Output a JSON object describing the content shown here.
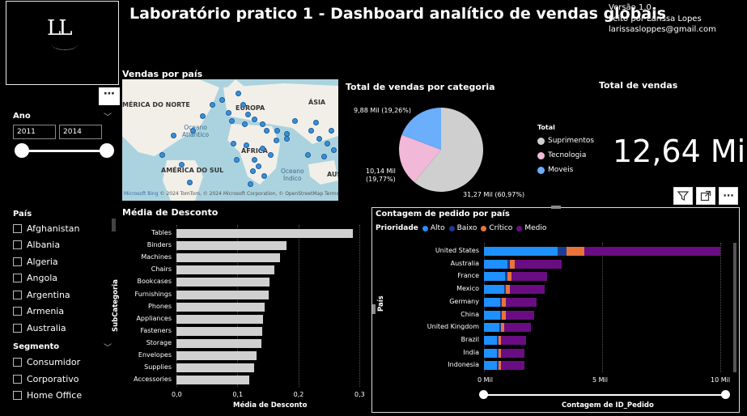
{
  "header": {
    "logo": "LL",
    "title": "Laboratório pratico 1 - Dashboard analítico de vendas globais",
    "version": "Versão 1.0",
    "author": "Feito por Larissa Lopes",
    "email": "larissasloppes@gmail.com"
  },
  "slicers": {
    "ano": {
      "label": "Ano",
      "from": "2011",
      "to": "2014"
    },
    "pais": {
      "label": "País",
      "items": [
        "Afghanistan",
        "Albania",
        "Algeria",
        "Angola",
        "Argentina",
        "Armenia",
        "Australia"
      ]
    },
    "segmento": {
      "label": "Segmento",
      "items": [
        "Consumidor",
        "Corporativo",
        "Home Office"
      ]
    }
  },
  "map": {
    "title": "Vendas por país",
    "labels": {
      "north_america": "MÉRICA DO NORTE",
      "europe": "EUROPA",
      "asia": "ÁSIA",
      "atlantic": "Oceano\nAtlântico",
      "africa": "ÁFRICA",
      "south_america": "AMÉRICA DO SUL",
      "indian": "Oceano\nÍndico",
      "aus": "AUS"
    },
    "credit_brand": "Microsoft Bing",
    "credit": "© 2024 TomTom, © 2024 Microsoft Corporation, © OpenStreetMap  Terms"
  },
  "pie": {
    "title": "Total de vendas por categoria",
    "legend_title": "Total",
    "slices": [
      {
        "name": "Suprimentos",
        "value": 31.27,
        "label": "31,27 Mil (60,97%)",
        "color": "#cfcfcf"
      },
      {
        "name": "Tecnologia",
        "value": 10.14,
        "label_line1": "10,14 Mil",
        "label_line2": "(19,77%)",
        "color": "#f2b8d8"
      },
      {
        "name": "Moveis",
        "value": 9.88,
        "label": "9,88 Mil (19,26%)",
        "color": "#6aaefc"
      }
    ]
  },
  "card": {
    "title": "Total de vendas",
    "value": "12,64 Mi"
  },
  "bar_chart": {
    "title": "Média de Desconto",
    "ylabel": "SubCategoria",
    "xlabel": "Média de Desconto",
    "ticks": [
      "0,0",
      "0,1",
      "0,2",
      "0,3"
    ],
    "xlim": [
      0,
      0.3
    ]
  },
  "stack_chart": {
    "title": "Contagem de pedido por país",
    "legend_title": "Prioridade",
    "ylabel": "País",
    "xlabel": "Contagem de ID_Pedido",
    "ticks": [
      "0 Mil",
      "5 Mil",
      "10 Mil"
    ],
    "xlim": [
      0,
      10000
    ],
    "colors": {
      "Alto": "#1e90ff",
      "Baixo": "#1f3a93",
      "Crítico": "#e8743b",
      "Medio": "#6a0d83"
    }
  },
  "chart_data": [
    {
      "type": "bar",
      "title": "Média de Desconto",
      "xlabel": "Média de Desconto",
      "ylabel": "SubCategoria",
      "categories": [
        "Tables",
        "Binders",
        "Machines",
        "Chairs",
        "Bookcases",
        "Furnishings",
        "Phones",
        "Appliances",
        "Fasteners",
        "Storage",
        "Envelopes",
        "Supplies",
        "Accessories"
      ],
      "values": [
        0.29,
        0.18,
        0.17,
        0.16,
        0.153,
        0.151,
        0.145,
        0.142,
        0.141,
        0.14,
        0.132,
        0.128,
        0.12
      ],
      "xlim": [
        0,
        0.3
      ]
    },
    {
      "type": "bar",
      "stacked": true,
      "orientation": "horizontal",
      "title": "Contagem de pedido por país",
      "xlabel": "Contagem de ID_Pedido",
      "ylabel": "País",
      "categories": [
        "United States",
        "Australia",
        "France",
        "Mexico",
        "Germany",
        "China",
        "United Kingdom",
        "Brazil",
        "India",
        "Indonesia"
      ],
      "series": [
        {
          "name": "Alto",
          "values": [
            3100,
            1000,
            900,
            850,
            700,
            700,
            650,
            550,
            550,
            550
          ]
        },
        {
          "name": "Baixo",
          "values": [
            400,
            100,
            90,
            80,
            70,
            70,
            60,
            50,
            50,
            50
          ]
        },
        {
          "name": "Crítico",
          "values": [
            750,
            200,
            190,
            180,
            150,
            150,
            140,
            120,
            120,
            120
          ]
        },
        {
          "name": "Medio",
          "values": [
            5750,
            2000,
            1500,
            1450,
            1300,
            1200,
            1150,
            1050,
            1000,
            1000
          ]
        }
      ],
      "xlim": [
        0,
        10000
      ]
    },
    {
      "type": "pie",
      "title": "Total de vendas por categoria",
      "categories": [
        "Suprimentos",
        "Tecnologia",
        "Moveis"
      ],
      "values": [
        31.27,
        10.14,
        9.88
      ]
    }
  ]
}
